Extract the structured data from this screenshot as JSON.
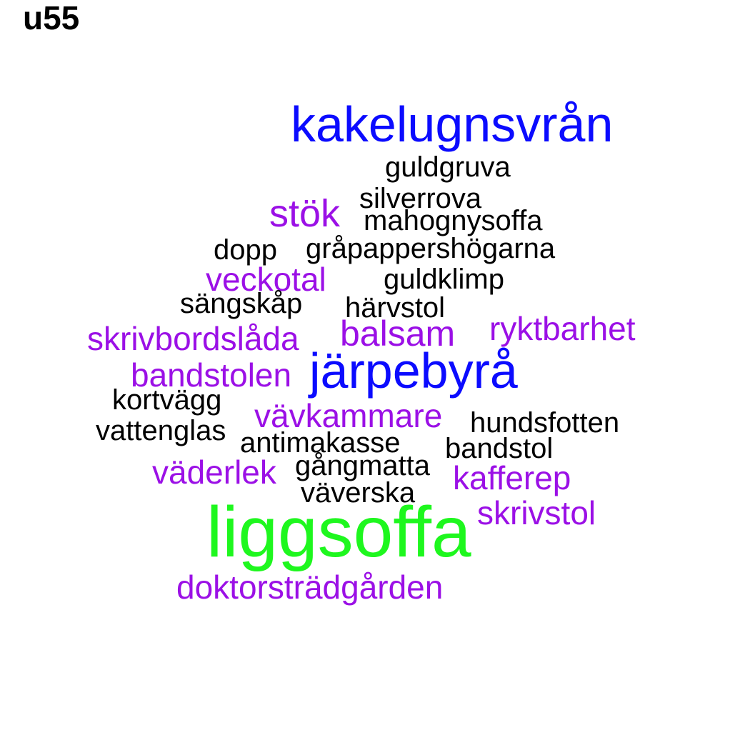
{
  "title": "u55",
  "colors": {
    "black": "#000000",
    "purple": "#9b10e6",
    "blue": "#0b0bff",
    "green": "#1ef71e"
  },
  "words": [
    {
      "text": "kakelugnsvrån",
      "color": "blue"
    },
    {
      "text": "guldgruva",
      "color": "black"
    },
    {
      "text": "silverrova",
      "color": "black"
    },
    {
      "text": "stök",
      "color": "purple"
    },
    {
      "text": "mahognysoffa",
      "color": "black"
    },
    {
      "text": "dopp",
      "color": "black"
    },
    {
      "text": "gråpappershögarna",
      "color": "black"
    },
    {
      "text": "veckotal",
      "color": "purple"
    },
    {
      "text": "guldklimp",
      "color": "black"
    },
    {
      "text": "sängskåp",
      "color": "black"
    },
    {
      "text": "härvstol",
      "color": "black"
    },
    {
      "text": "skrivbordslåda",
      "color": "purple"
    },
    {
      "text": "balsam",
      "color": "purple"
    },
    {
      "text": "ryktbarhet",
      "color": "purple"
    },
    {
      "text": "järpebyrå",
      "color": "blue"
    },
    {
      "text": "bandstolen",
      "color": "purple"
    },
    {
      "text": "kortvägg",
      "color": "black"
    },
    {
      "text": "vävkammare",
      "color": "purple"
    },
    {
      "text": "hundsfotten",
      "color": "black"
    },
    {
      "text": "vattenglas",
      "color": "black"
    },
    {
      "text": "antimakasse",
      "color": "black"
    },
    {
      "text": "bandstol",
      "color": "black"
    },
    {
      "text": "gångmatta",
      "color": "black"
    },
    {
      "text": "väderlek",
      "color": "purple"
    },
    {
      "text": "kafferep",
      "color": "purple"
    },
    {
      "text": "väverska",
      "color": "black"
    },
    {
      "text": "skrivstol",
      "color": "purple"
    },
    {
      "text": "liggsoffa",
      "color": "green"
    },
    {
      "text": "doktorsträdgården",
      "color": "purple"
    }
  ]
}
